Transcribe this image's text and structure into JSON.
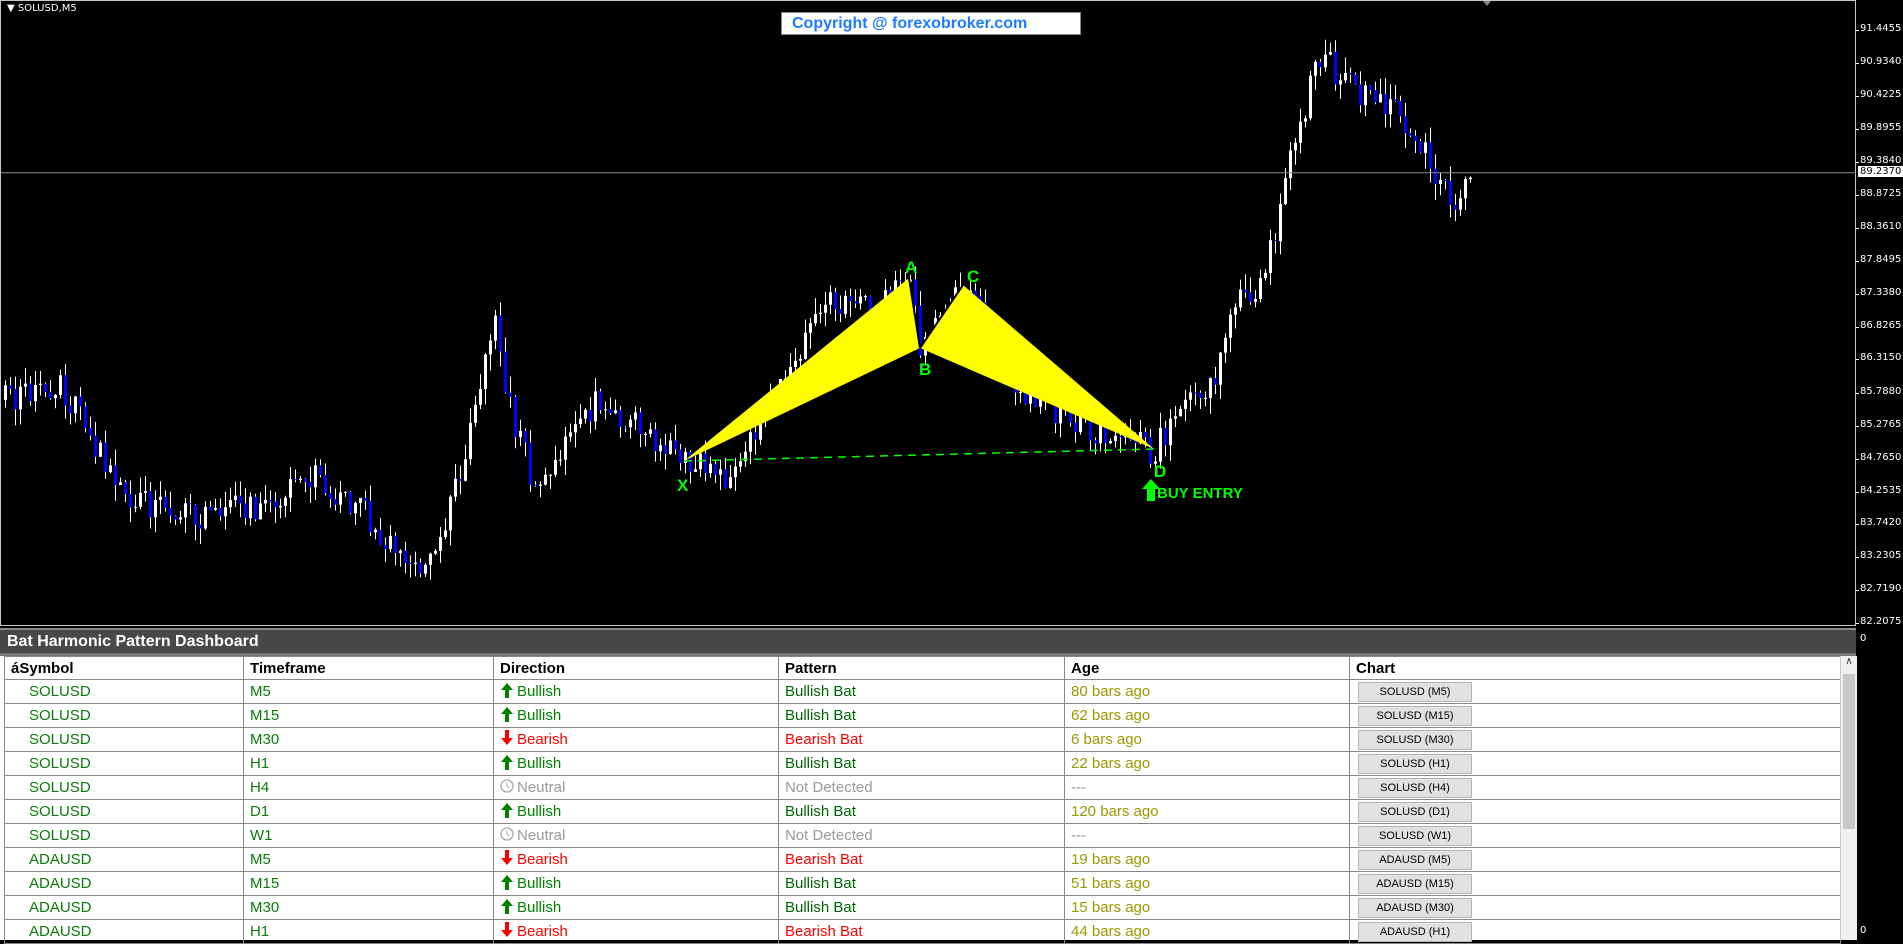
{
  "chart": {
    "symbol_title": "SOLUSD,M5",
    "copyright": "Copyright @ forexobroker.com",
    "current_price": "89.2370",
    "price_ticks": [
      "91.4455",
      "90.9340",
      "90.4225",
      "89.8955",
      "89.3840",
      "88.8725",
      "88.3610",
      "87.8495",
      "87.3380",
      "86.8265",
      "86.3150",
      "85.7880",
      "85.2765",
      "84.7650",
      "84.2535",
      "83.7420",
      "83.2305",
      "82.7190",
      "82.2075"
    ],
    "indicator_axis": {
      "top": "0",
      "bottom": "0"
    },
    "pattern_labels": {
      "x": "X",
      "a": "A",
      "b": "B",
      "c": "C",
      "d": "D",
      "signal": "BUY ENTRY"
    },
    "colors": {
      "bull_candle": "#ffffff",
      "bear_candle": "#0000ff",
      "pattern_fill": "#ffff00",
      "label": "#00ff00"
    }
  },
  "dashboard": {
    "title": "Bat Harmonic Pattern Dashboard",
    "columns": [
      "áSymbol",
      "Timeframe",
      "Direction",
      "Pattern",
      "Age",
      "Chart"
    ],
    "rows": [
      {
        "symbol": "SOLUSD",
        "timeframe": "M5",
        "direction": "Bullish",
        "icon": "arrow-up",
        "pattern": "Bullish Bat",
        "age": "80 bars ago",
        "chart": "SOLUSD (M5)"
      },
      {
        "symbol": "SOLUSD",
        "timeframe": "M15",
        "direction": "Bullish",
        "icon": "arrow-up",
        "pattern": "Bullish Bat",
        "age": "62 bars ago",
        "chart": "SOLUSD (M15)"
      },
      {
        "symbol": "SOLUSD",
        "timeframe": "M30",
        "direction": "Bearish",
        "icon": "arrow-down",
        "pattern": "Bearish Bat",
        "age": "6 bars ago",
        "chart": "SOLUSD (M30)"
      },
      {
        "symbol": "SOLUSD",
        "timeframe": "H1",
        "direction": "Bullish",
        "icon": "arrow-up",
        "pattern": "Bullish Bat",
        "age": "22 bars ago",
        "chart": "SOLUSD (H1)"
      },
      {
        "symbol": "SOLUSD",
        "timeframe": "H4",
        "direction": "Neutral",
        "icon": "clock",
        "pattern": "Not Detected",
        "age": "---",
        "chart": "SOLUSD (H4)"
      },
      {
        "symbol": "SOLUSD",
        "timeframe": "D1",
        "direction": "Bullish",
        "icon": "arrow-up",
        "pattern": "Bullish Bat",
        "age": "120 bars ago",
        "chart": "SOLUSD (D1)"
      },
      {
        "symbol": "SOLUSD",
        "timeframe": "W1",
        "direction": "Neutral",
        "icon": "clock",
        "pattern": "Not Detected",
        "age": "---",
        "chart": "SOLUSD (W1)"
      },
      {
        "symbol": "ADAUSD",
        "timeframe": "M5",
        "direction": "Bearish",
        "icon": "arrow-down",
        "pattern": "Bearish Bat",
        "age": "19 bars ago",
        "chart": "ADAUSD (M5)"
      },
      {
        "symbol": "ADAUSD",
        "timeframe": "M15",
        "direction": "Bullish",
        "icon": "arrow-up",
        "pattern": "Bullish Bat",
        "age": "51 bars ago",
        "chart": "ADAUSD (M15)"
      },
      {
        "symbol": "ADAUSD",
        "timeframe": "M30",
        "direction": "Bullish",
        "icon": "arrow-up",
        "pattern": "Bullish Bat",
        "age": "15 bars ago",
        "chart": "ADAUSD (M30)"
      },
      {
        "symbol": "ADAUSD",
        "timeframe": "H1",
        "direction": "Bearish",
        "icon": "arrow-down",
        "pattern": "Bearish Bat",
        "age": "44 bars ago",
        "chart": "ADAUSD (H1)"
      }
    ],
    "colors": {
      "symbol": "#0a7a0a",
      "bullish": "#008000",
      "bearish": "#ff0000",
      "neutral": "#999999",
      "age": "#999900",
      "pattern_bull": "#006400"
    }
  }
}
